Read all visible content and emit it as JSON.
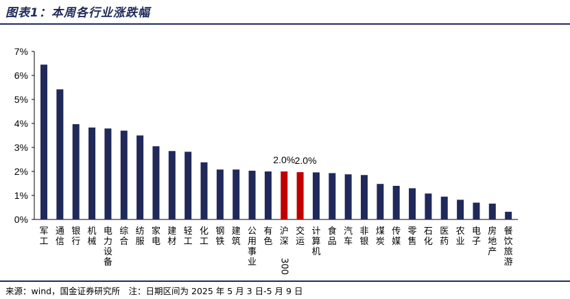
{
  "title": "图表1：本周各行业涨跌幅",
  "source_note": "来源：wind，国金证券研究所　注：日期区间为 2025 年 5 月 3 日-5 月 9 日",
  "colors": {
    "bar": "#1f2a5a",
    "highlight": "#c00000",
    "axis": "#000000",
    "rule": "#1f2a5a"
  },
  "chart_data": {
    "type": "bar",
    "ylim": [
      0,
      7
    ],
    "yticks": [
      "0%",
      "1%",
      "2%",
      "3%",
      "4%",
      "5%",
      "6%",
      "7%"
    ],
    "grid": false,
    "categories": [
      "军工",
      "通信",
      "银行",
      "机械",
      "电力设备",
      "综合",
      "纺服",
      "家电",
      "建材",
      "轻工",
      "化工",
      "钢铁",
      "建筑",
      "公用事业",
      "有色",
      "沪深300",
      "交运",
      "计算机",
      "食品",
      "汽车",
      "非银",
      "煤炭",
      "传媒",
      "零售",
      "石化",
      "医药",
      "农业",
      "电子",
      "房地产",
      "餐饮旅游"
    ],
    "values": [
      6.45,
      5.42,
      3.97,
      3.83,
      3.79,
      3.7,
      3.5,
      3.05,
      2.85,
      2.82,
      2.38,
      2.08,
      2.08,
      2.03,
      2.0,
      2.0,
      1.97,
      1.96,
      1.93,
      1.88,
      1.85,
      1.48,
      1.4,
      1.3,
      1.08,
      0.95,
      0.82,
      0.7,
      0.66,
      0.32
    ],
    "highlighted": [
      "沪深300",
      "交运"
    ],
    "data_labels": {
      "沪深300": "2.0%",
      "交运": "2.0%"
    }
  }
}
